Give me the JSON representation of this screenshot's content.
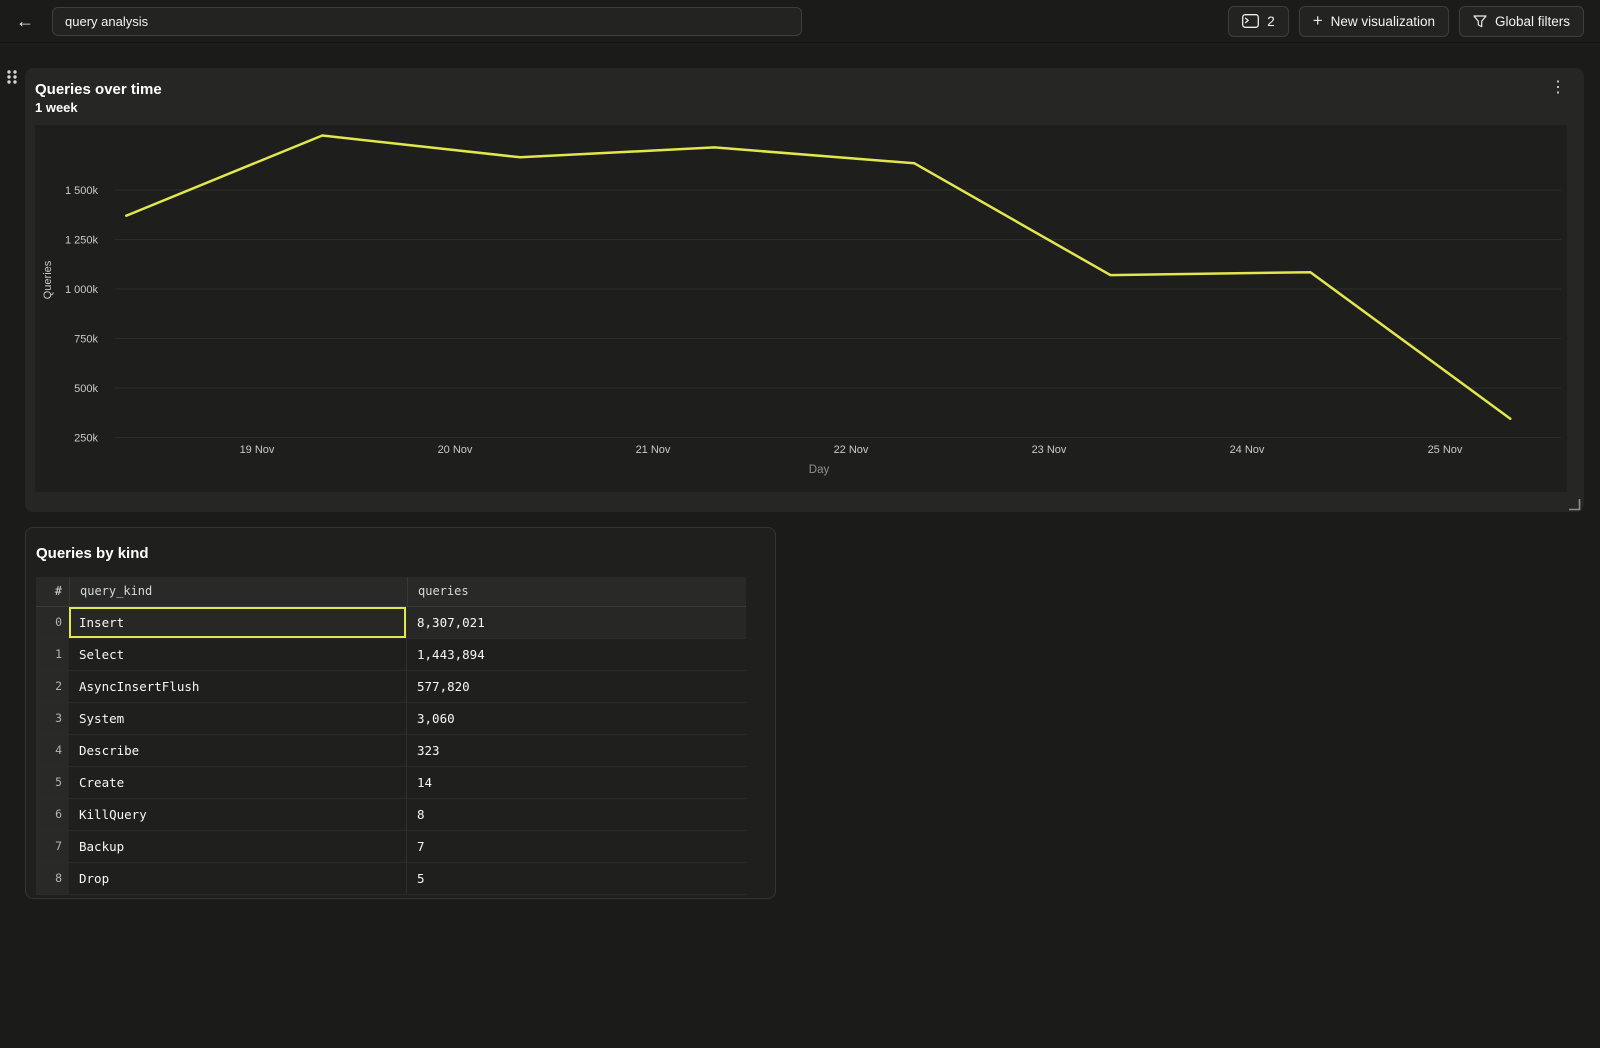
{
  "icons": {
    "back": "←",
    "plus": "+",
    "kebab": "⋮"
  },
  "colors": {
    "accent_yellow": "#e2e74e",
    "page_bg": "#1b1b1a",
    "panel_bg": "#262625",
    "plot_bg": "#1e1e1d"
  },
  "topbar": {
    "search_input": {
      "value": "query analysis"
    },
    "buttons": {
      "console": {
        "count": "2"
      },
      "new_visualization": {
        "label": "New visualization"
      },
      "global_filters": {
        "label": "Global filters"
      }
    }
  },
  "chart_panel": {
    "title": "Queries over time",
    "subtitle": "1 week"
  },
  "chart_data": {
    "type": "line",
    "title": "Queries over time",
    "subtitle": "1 week",
    "xlabel": "Day",
    "ylabel": "Queries",
    "grid": "horizontal",
    "legend": "none",
    "x_tick_labels": [
      "19 Nov",
      "20 Nov",
      "21 Nov",
      "22 Nov",
      "23 Nov",
      "24 Nov",
      "25 Nov"
    ],
    "y_ticks": [
      {
        "label": "1 500k",
        "value_k": 1500
      },
      {
        "label": "1 250k",
        "value_k": 1250
      },
      {
        "label": "1 000k",
        "value_k": 1000
      },
      {
        "label": "750k",
        "value_k": 750
      },
      {
        "label": "500k",
        "value_k": 500
      },
      {
        "label": "250k",
        "value_k": 250
      }
    ],
    "series": [
      {
        "name": "queries",
        "color": "#e2e74e",
        "points": [
          {
            "x_days_from_19nov": -0.66,
            "value_k": 1370
          },
          {
            "x_days_from_19nov": 0.33,
            "value_k": 1775
          },
          {
            "x_days_from_19nov": 1.33,
            "value_k": 1665
          },
          {
            "x_days_from_19nov": 2.31,
            "value_k": 1715
          },
          {
            "x_days_from_19nov": 3.32,
            "value_k": 1635
          },
          {
            "x_days_from_19nov": 4.31,
            "value_k": 1070
          },
          {
            "x_days_from_19nov": 5.32,
            "value_k": 1085
          },
          {
            "x_days_from_19nov": 6.33,
            "value_k": 345
          }
        ]
      }
    ]
  },
  "table_panel": {
    "title": "Queries by kind",
    "columns": [
      "#",
      "query_kind",
      "queries"
    ],
    "rows": [
      {
        "index": "0",
        "query_kind": "Insert",
        "queries": "8,307,021",
        "selected": true
      },
      {
        "index": "1",
        "query_kind": "Select",
        "queries": "1,443,894",
        "selected": false
      },
      {
        "index": "2",
        "query_kind": "AsyncInsertFlush",
        "queries": "577,820",
        "selected": false
      },
      {
        "index": "3",
        "query_kind": "System",
        "queries": "3,060",
        "selected": false
      },
      {
        "index": "4",
        "query_kind": "Describe",
        "queries": "323",
        "selected": false
      },
      {
        "index": "5",
        "query_kind": "Create",
        "queries": "14",
        "selected": false
      },
      {
        "index": "6",
        "query_kind": "KillQuery",
        "queries": "8",
        "selected": false
      },
      {
        "index": "7",
        "query_kind": "Backup",
        "queries": "7",
        "selected": false
      },
      {
        "index": "8",
        "query_kind": "Drop",
        "queries": "5",
        "selected": false
      }
    ]
  }
}
